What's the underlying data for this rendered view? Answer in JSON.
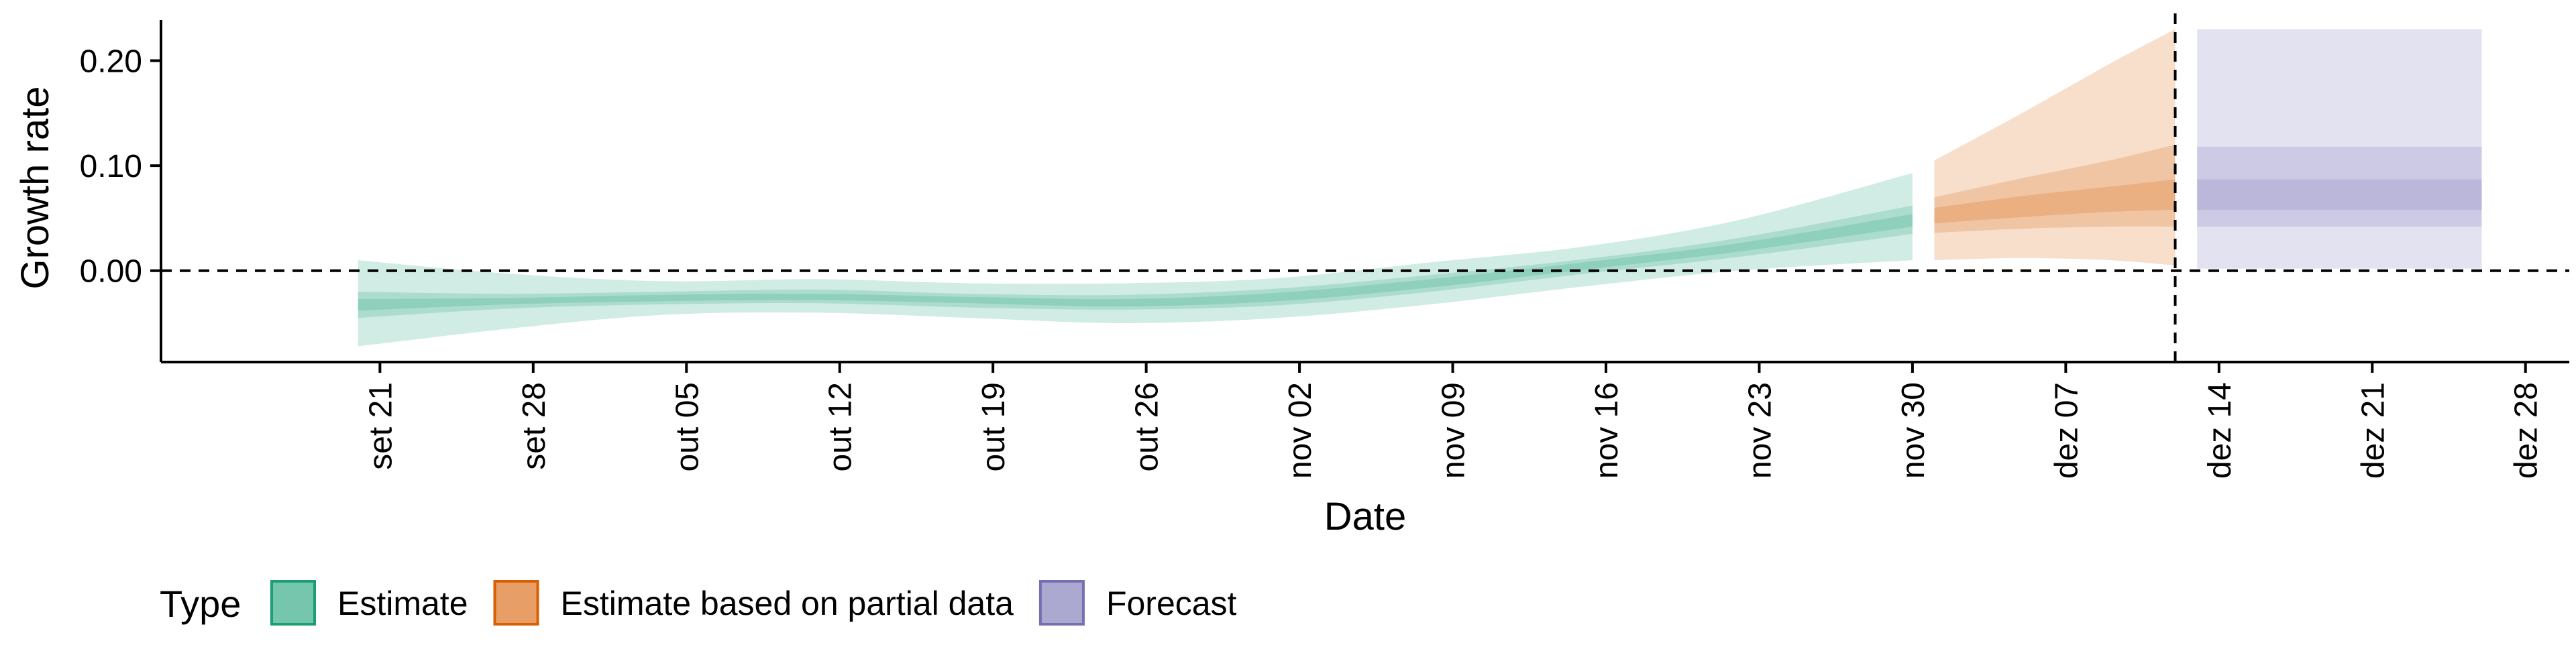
{
  "chart_data": {
    "type": "area",
    "xlabel": "Date",
    "ylabel": "Growth rate",
    "ylim": [
      -0.087,
      0.245
    ],
    "xlim": [
      "2020-09-11",
      "2020-12-30"
    ],
    "y_ticks": [
      0.0,
      0.1,
      0.2
    ],
    "y_tick_labels": [
      "0.00",
      "0.10",
      "0.20"
    ],
    "x_ticks": [
      "2020-09-21",
      "2020-09-28",
      "2020-10-05",
      "2020-10-12",
      "2020-10-19",
      "2020-10-26",
      "2020-11-02",
      "2020-11-09",
      "2020-11-16",
      "2020-11-23",
      "2020-11-30",
      "2020-12-07",
      "2020-12-14",
      "2020-12-21",
      "2020-12-28"
    ],
    "x_tick_labels": [
      "set 21",
      "set 28",
      "out 05",
      "out 12",
      "out 19",
      "out 26",
      "nov 02",
      "nov 09",
      "nov 16",
      "nov 23",
      "nov 30",
      "dez 07",
      "dez 14",
      "dez 21",
      "dez 28"
    ],
    "hlines": [
      0.0
    ],
    "vlines": [
      "2020-12-12"
    ],
    "grid": false,
    "legend": {
      "title": "Type",
      "position": "bottom-left",
      "items": [
        {
          "label": "Estimate",
          "color": "#1b9e77"
        },
        {
          "label": "Estimate based on partial data",
          "color": "#d95f02"
        },
        {
          "label": "Forecast",
          "color": "#7570b3"
        }
      ]
    },
    "series": [
      {
        "name": "Estimate",
        "color": "#1b9e77",
        "x": [
          "2020-09-20",
          "2020-09-27",
          "2020-10-04",
          "2020-10-11",
          "2020-10-18",
          "2020-10-25",
          "2020-11-01",
          "2020-11-08",
          "2020-11-15",
          "2020-11-22",
          "2020-11-30"
        ],
        "median": [
          -0.033,
          -0.029,
          -0.026,
          -0.025,
          -0.028,
          -0.03,
          -0.025,
          -0.012,
          0.004,
          0.022,
          0.048
        ],
        "lower_90": [
          -0.072,
          -0.055,
          -0.042,
          -0.04,
          -0.045,
          -0.05,
          -0.045,
          -0.032,
          -0.015,
          0.0,
          0.01
        ],
        "upper_90": [
          0.01,
          -0.003,
          -0.01,
          -0.008,
          -0.012,
          -0.012,
          -0.007,
          0.008,
          0.023,
          0.048,
          0.093
        ],
        "lower_50": [
          -0.045,
          -0.036,
          -0.032,
          -0.031,
          -0.035,
          -0.037,
          -0.033,
          -0.02,
          -0.003,
          0.013,
          0.035
        ],
        "upper_50": [
          -0.02,
          -0.022,
          -0.02,
          -0.018,
          -0.022,
          -0.023,
          -0.017,
          -0.004,
          0.011,
          0.031,
          0.062
        ],
        "lower_20": [
          -0.038,
          -0.032,
          -0.029,
          -0.028,
          -0.031,
          -0.034,
          -0.029,
          -0.016,
          0.001,
          0.018,
          0.042
        ],
        "upper_20": [
          -0.027,
          -0.026,
          -0.023,
          -0.022,
          -0.025,
          -0.027,
          -0.021,
          -0.008,
          0.008,
          0.026,
          0.054
        ]
      },
      {
        "name": "Estimate based on partial data",
        "color": "#d95f02",
        "x": [
          "2020-12-01",
          "2020-12-05",
          "2020-12-09",
          "2020-12-12"
        ],
        "median": [
          0.052,
          0.06,
          0.067,
          0.072
        ],
        "lower_90": [
          0.01,
          0.012,
          0.01,
          0.005
        ],
        "upper_90": [
          0.105,
          0.15,
          0.197,
          0.23
        ],
        "lower_50": [
          0.036,
          0.04,
          0.042,
          0.042
        ],
        "upper_50": [
          0.07,
          0.088,
          0.105,
          0.12
        ],
        "lower_20": [
          0.045,
          0.051,
          0.056,
          0.058
        ],
        "upper_20": [
          0.06,
          0.071,
          0.08,
          0.087
        ]
      },
      {
        "name": "Forecast",
        "color": "#7570b3",
        "x": [
          "2020-12-13",
          "2020-12-26"
        ],
        "median": [
          0.072,
          0.072
        ],
        "lower_90": [
          0.002,
          0.002
        ],
        "upper_90": [
          0.23,
          0.23
        ],
        "lower_50": [
          0.042,
          0.042
        ],
        "upper_50": [
          0.118,
          0.118
        ],
        "lower_20": [
          0.058,
          0.058
        ],
        "upper_20": [
          0.087,
          0.087
        ]
      }
    ]
  }
}
